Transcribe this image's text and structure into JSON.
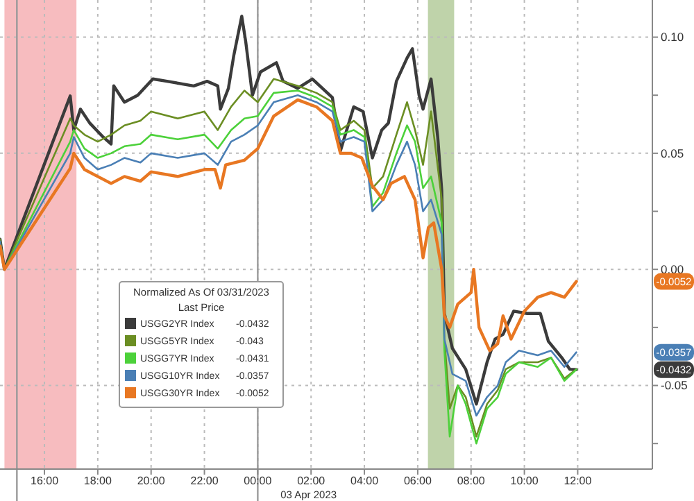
{
  "chart_data": {
    "type": "line",
    "legend_title": "Normalized As Of 03/31/2023\nLast Price",
    "legend": "bottom left",
    "grid": true,
    "xlim": [
      "2023-04-02T14:20",
      "2023-04-03T14:48"
    ],
    "xticks": [
      {
        "value": "2023-04-02T16:00",
        "label": "16:00"
      },
      {
        "value": "2023-04-02T18:00",
        "label": "18:00"
      },
      {
        "value": "2023-04-02T20:00",
        "label": "20:00"
      },
      {
        "value": "2023-04-02T22:00",
        "label": "22:00"
      },
      {
        "value": "2023-04-03T00:00",
        "label": "00:00"
      },
      {
        "value": "2023-04-03T02:00",
        "label": "02:00"
      },
      {
        "value": "2023-04-03T04:00",
        "label": "04:00"
      },
      {
        "value": "2023-04-03T06:00",
        "label": "06:00"
      },
      {
        "value": "2023-04-03T08:00",
        "label": "08:00"
      },
      {
        "value": "2023-04-03T10:00",
        "label": "10:00"
      },
      {
        "value": "2023-04-03T12:00",
        "label": "12:00"
      }
    ],
    "ylim": [
      -0.086,
      0.116
    ],
    "yticks": [
      {
        "value": -0.075,
        "label": null
      },
      {
        "value": -0.05,
        "label": "-0.05"
      },
      {
        "value": -0.025,
        "label": null
      },
      {
        "value": 0,
        "label": "0.00"
      },
      {
        "value": 0.025,
        "label": null
      },
      {
        "value": 0.05,
        "label": "0.05"
      },
      {
        "value": 0.075,
        "label": null
      },
      {
        "value": 0.1,
        "label": "0.10"
      }
    ],
    "bands": [
      {
        "axis": "x",
        "from": "2023-04-02T14:30",
        "to": "2023-04-02T17:12",
        "color": "#f4a6aa"
      },
      {
        "axis": "x",
        "from": "2023-04-03T06:23",
        "to": "2023-04-03T07:22",
        "color": "#a9c48d"
      }
    ],
    "ref_lines": [
      {
        "axis": "x",
        "value": "2023-04-02T14:58",
        "color": "#9a9a9a"
      },
      {
        "axis": "x",
        "value": "2023-04-03T00:00",
        "color": "#9a9a9a"
      }
    ],
    "annotations": [
      "03 Apr 2023",
      "-0.0432",
      "-0.043",
      "-0.0431",
      "-0.0357",
      "-0.0052",
      "-0.0052",
      "-0.0357",
      "-0.0432"
    ],
    "series": [
      {
        "name": "USGG2YR Index",
        "color": "#3b3b3b",
        "x": [
          "2023-04-02T14:20",
          "2023-04-02T14:30",
          "2023-04-02T16:58",
          "2023-04-02T17:06",
          "2023-04-02T17:21",
          "2023-04-02T17:42",
          "2023-04-02T18:12",
          "2023-04-02T18:30",
          "2023-04-02T18:36",
          "2023-04-02T19:00",
          "2023-04-02T19:30",
          "2023-04-02T20:04",
          "2023-04-02T20:36",
          "2023-04-02T21:36",
          "2023-04-02T22:06",
          "2023-04-02T22:30",
          "2023-04-02T22:36",
          "2023-04-02T22:54",
          "2023-04-02T23:06",
          "2023-04-02T23:24",
          "2023-04-02T23:33",
          "2023-04-02T23:48",
          "2023-04-03T00:06",
          "2023-04-03T00:42",
          "2023-04-03T00:57",
          "2023-04-03T01:30",
          "2023-04-03T02:03",
          "2023-04-03T02:48",
          "2023-04-03T03:06",
          "2023-04-03T03:36",
          "2023-04-03T03:57",
          "2023-04-03T04:18",
          "2023-04-03T04:39",
          "2023-04-03T04:54",
          "2023-04-03T05:12",
          "2023-04-03T05:36",
          "2023-04-03T05:48",
          "2023-04-03T06:03",
          "2023-04-03T06:12",
          "2023-04-03T06:30",
          "2023-04-03T06:45",
          "2023-04-03T06:54",
          "2023-04-03T07:00",
          "2023-04-03T07:18",
          "2023-04-03T07:48",
          "2023-04-03T08:12",
          "2023-04-03T08:36",
          "2023-04-03T08:54",
          "2023-04-03T09:12",
          "2023-04-03T09:36",
          "2023-04-03T10:06",
          "2023-04-03T10:36",
          "2023-04-03T10:54",
          "2023-04-03T11:24",
          "2023-04-03T11:42",
          "2023-04-03T11:57"
        ],
        "values": [
          0.013,
          0.0,
          0.0747,
          0.06,
          0.069,
          0.063,
          0.057,
          0.054,
          0.079,
          0.072,
          0.075,
          0.082,
          0.081,
          0.079,
          0.081,
          0.079,
          0.069,
          0.078,
          0.092,
          0.109,
          0.098,
          0.075,
          0.085,
          0.089,
          0.081,
          0.078,
          0.082,
          0.074,
          0.051,
          0.07,
          0.068,
          0.048,
          0.06,
          0.063,
          0.081,
          0.091,
          0.095,
          0.075,
          0.069,
          0.082,
          0.057,
          0.034,
          -0.019,
          -0.034,
          -0.043,
          -0.058,
          -0.04,
          -0.03,
          -0.028,
          -0.018,
          -0.019,
          -0.019,
          -0.031,
          -0.038,
          -0.043,
          -0.0432
        ]
      },
      {
        "name": "USGG5YR Index",
        "color": "#6b8e23",
        "x": [
          "2023-04-02T14:20",
          "2023-04-02T14:30",
          "2023-04-02T16:58",
          "2023-04-02T17:06",
          "2023-04-02T17:30",
          "2023-04-02T18:00",
          "2023-04-02T18:30",
          "2023-04-02T19:00",
          "2023-04-02T19:36",
          "2023-04-02T20:00",
          "2023-04-02T21:00",
          "2023-04-02T22:00",
          "2023-04-02T22:30",
          "2023-04-02T23:00",
          "2023-04-02T23:30",
          "2023-04-03T00:00",
          "2023-04-03T00:36",
          "2023-04-03T01:30",
          "2023-04-03T02:12",
          "2023-04-03T02:48",
          "2023-04-03T03:06",
          "2023-04-03T03:36",
          "2023-04-03T04:00",
          "2023-04-03T04:18",
          "2023-04-03T04:42",
          "2023-04-03T05:12",
          "2023-04-03T05:36",
          "2023-04-03T05:54",
          "2023-04-03T06:12",
          "2023-04-03T06:30",
          "2023-04-03T06:54",
          "2023-04-03T07:00",
          "2023-04-03T07:12",
          "2023-04-03T07:30",
          "2023-04-03T07:48",
          "2023-04-03T08:12",
          "2023-04-03T08:36",
          "2023-04-03T09:00",
          "2023-04-03T09:18",
          "2023-04-03T09:48",
          "2023-04-03T10:30",
          "2023-04-03T11:00",
          "2023-04-03T11:30",
          "2023-04-03T11:57"
        ],
        "values": [
          0.013,
          0.0,
          0.065,
          0.062,
          0.058,
          0.055,
          0.058,
          0.062,
          0.064,
          0.068,
          0.065,
          0.068,
          0.06,
          0.07,
          0.077,
          0.072,
          0.082,
          0.079,
          0.076,
          0.072,
          0.06,
          0.064,
          0.06,
          0.035,
          0.04,
          0.058,
          0.072,
          0.06,
          0.045,
          0.068,
          0.03,
          -0.03,
          -0.06,
          -0.05,
          -0.055,
          -0.072,
          -0.058,
          -0.052,
          -0.043,
          -0.04,
          -0.04,
          -0.038,
          -0.047,
          -0.043
        ]
      },
      {
        "name": "USGG7YR Index",
        "color": "#4cd13a",
        "x": [
          "2023-04-02T14:20",
          "2023-04-02T14:30",
          "2023-04-02T16:58",
          "2023-04-02T17:06",
          "2023-04-02T17:30",
          "2023-04-02T18:00",
          "2023-04-02T18:30",
          "2023-04-02T19:00",
          "2023-04-02T19:36",
          "2023-04-02T20:00",
          "2023-04-02T21:00",
          "2023-04-02T22:00",
          "2023-04-02T22:30",
          "2023-04-02T23:00",
          "2023-04-02T23:30",
          "2023-04-03T00:00",
          "2023-04-03T00:36",
          "2023-04-03T01:30",
          "2023-04-03T02:12",
          "2023-04-03T02:48",
          "2023-04-03T03:06",
          "2023-04-03T03:36",
          "2023-04-03T04:00",
          "2023-04-03T04:18",
          "2023-04-03T04:42",
          "2023-04-03T05:12",
          "2023-04-03T05:36",
          "2023-04-03T05:54",
          "2023-04-03T06:12",
          "2023-04-03T06:30",
          "2023-04-03T06:54",
          "2023-04-03T07:00",
          "2023-04-03T07:12",
          "2023-04-03T07:30",
          "2023-04-03T07:48",
          "2023-04-03T08:12",
          "2023-04-03T08:36",
          "2023-04-03T09:00",
          "2023-04-03T09:18",
          "2023-04-03T09:48",
          "2023-04-03T10:30",
          "2023-04-03T11:00",
          "2023-04-03T11:30",
          "2023-04-03T11:57"
        ],
        "values": [
          0.012,
          0.0,
          0.055,
          0.06,
          0.052,
          0.048,
          0.05,
          0.053,
          0.054,
          0.058,
          0.056,
          0.058,
          0.052,
          0.06,
          0.065,
          0.066,
          0.076,
          0.077,
          0.074,
          0.07,
          0.058,
          0.06,
          0.057,
          0.027,
          0.033,
          0.05,
          0.062,
          0.055,
          0.035,
          0.04,
          0.02,
          -0.035,
          -0.072,
          -0.05,
          -0.058,
          -0.075,
          -0.06,
          -0.055,
          -0.045,
          -0.04,
          -0.042,
          -0.038,
          -0.048,
          -0.0431
        ]
      },
      {
        "name": "USGG10YR Index",
        "color": "#4a7fb5",
        "x": [
          "2023-04-02T14:20",
          "2023-04-02T14:30",
          "2023-04-02T16:58",
          "2023-04-02T17:06",
          "2023-04-02T17:30",
          "2023-04-02T18:00",
          "2023-04-02T18:30",
          "2023-04-02T19:00",
          "2023-04-02T19:36",
          "2023-04-02T20:00",
          "2023-04-02T21:00",
          "2023-04-02T22:00",
          "2023-04-02T22:30",
          "2023-04-02T23:00",
          "2023-04-02T23:30",
          "2023-04-03T00:00",
          "2023-04-03T00:36",
          "2023-04-03T01:30",
          "2023-04-03T02:12",
          "2023-04-03T02:48",
          "2023-04-03T03:06",
          "2023-04-03T03:36",
          "2023-04-03T04:00",
          "2023-04-03T04:18",
          "2023-04-03T04:42",
          "2023-04-03T05:12",
          "2023-04-03T05:36",
          "2023-04-03T05:54",
          "2023-04-03T06:12",
          "2023-04-03T06:30",
          "2023-04-03T06:54",
          "2023-04-03T07:00",
          "2023-04-03T07:18",
          "2023-04-03T07:48",
          "2023-04-03T08:12",
          "2023-04-03T08:36",
          "2023-04-03T09:00",
          "2023-04-03T09:18",
          "2023-04-03T09:48",
          "2023-04-03T10:30",
          "2023-04-03T11:00",
          "2023-04-03T11:30",
          "2023-04-03T11:57"
        ],
        "values": [
          0.012,
          0.0,
          0.05,
          0.057,
          0.048,
          0.043,
          0.045,
          0.048,
          0.046,
          0.05,
          0.048,
          0.05,
          0.045,
          0.055,
          0.058,
          0.062,
          0.072,
          0.075,
          0.072,
          0.068,
          0.055,
          0.057,
          0.055,
          0.025,
          0.03,
          0.045,
          0.055,
          0.045,
          0.025,
          0.03,
          0.015,
          -0.03,
          -0.045,
          -0.048,
          -0.063,
          -0.055,
          -0.05,
          -0.04,
          -0.035,
          -0.037,
          -0.035,
          -0.042,
          -0.0357
        ]
      },
      {
        "name": "USGG30YR Index",
        "color": "#e87722",
        "x": [
          "2023-04-02T14:20",
          "2023-04-02T14:30",
          "2023-04-02T16:58",
          "2023-04-02T17:06",
          "2023-04-02T17:30",
          "2023-04-02T18:00",
          "2023-04-02T18:30",
          "2023-04-02T19:00",
          "2023-04-02T19:36",
          "2023-04-02T20:00",
          "2023-04-02T21:00",
          "2023-04-02T22:00",
          "2023-04-02T22:24",
          "2023-04-02T22:36",
          "2023-04-02T22:48",
          "2023-04-02T23:30",
          "2023-04-03T00:00",
          "2023-04-03T00:36",
          "2023-04-03T01:30",
          "2023-04-03T02:12",
          "2023-04-03T02:48",
          "2023-04-03T03:06",
          "2023-04-03T03:30",
          "2023-04-03T03:54",
          "2023-04-03T04:18",
          "2023-04-03T04:42",
          "2023-04-03T05:00",
          "2023-04-03T05:30",
          "2023-04-03T05:54",
          "2023-04-03T06:12",
          "2023-04-03T06:24",
          "2023-04-03T06:36",
          "2023-04-03T06:54",
          "2023-04-03T07:00",
          "2023-04-03T07:12",
          "2023-04-03T07:30",
          "2023-04-03T08:00",
          "2023-04-03T08:06",
          "2023-04-03T08:18",
          "2023-04-03T08:42",
          "2023-04-03T09:00",
          "2023-04-03T09:12",
          "2023-04-03T09:30",
          "2023-04-03T10:00",
          "2023-04-03T10:30",
          "2023-04-03T11:00",
          "2023-04-03T11:30",
          "2023-04-03T11:57"
        ],
        "values": [
          0.01,
          0.0,
          0.0435,
          0.05,
          0.043,
          0.04,
          0.037,
          0.04,
          0.038,
          0.042,
          0.04,
          0.043,
          0.043,
          0.035,
          0.045,
          0.047,
          0.052,
          0.066,
          0.073,
          0.07,
          0.064,
          0.05,
          0.05,
          0.048,
          0.036,
          0.03,
          0.037,
          0.04,
          0.03,
          0.005,
          0.018,
          0.02,
          0.0,
          -0.02,
          -0.025,
          -0.015,
          -0.01,
          0.0,
          -0.025,
          -0.035,
          -0.032,
          -0.02,
          -0.03,
          -0.018,
          -0.012,
          -0.01,
          -0.012,
          -0.0052
        ]
      }
    ]
  }
}
